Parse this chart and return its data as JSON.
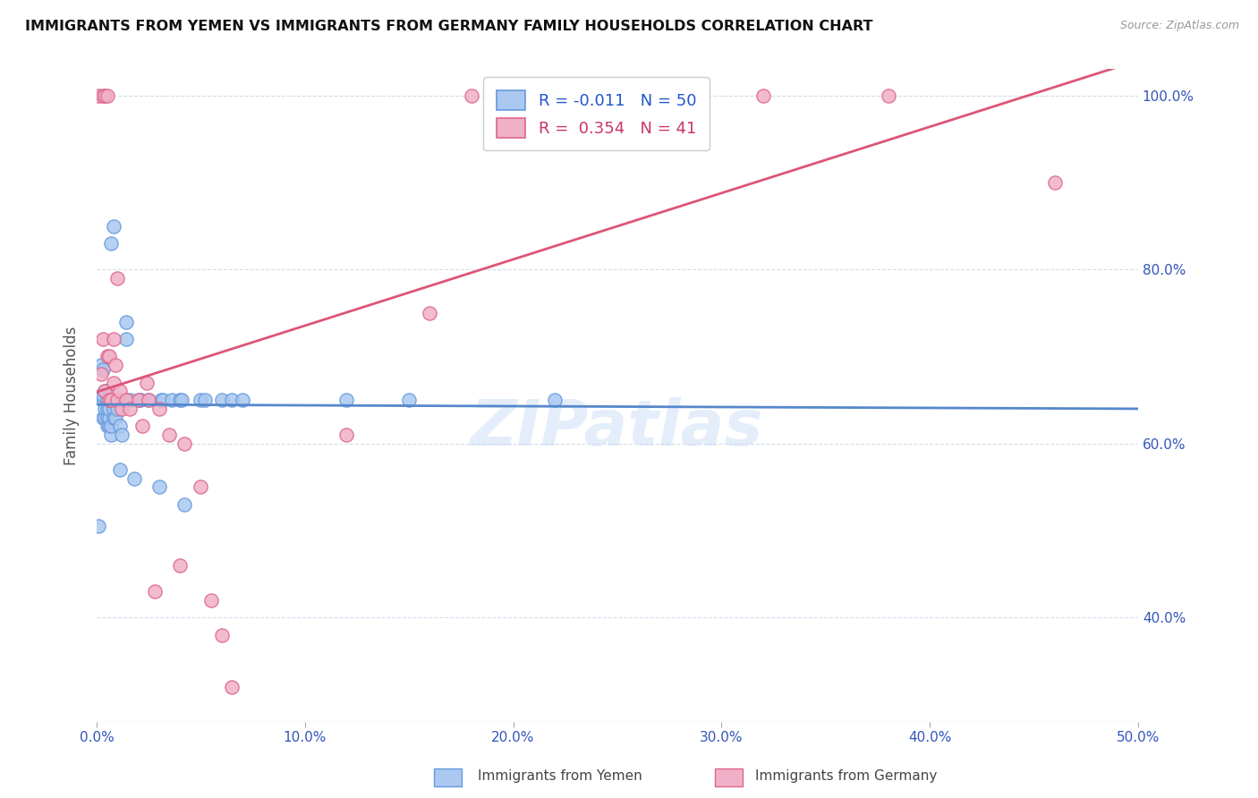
{
  "title": "IMMIGRANTS FROM YEMEN VS IMMIGRANTS FROM GERMANY FAMILY HOUSEHOLDS CORRELATION CHART",
  "source": "Source: ZipAtlas.com",
  "ylabel": "Family Households",
  "watermark": "ZIPatlas",
  "xlim": [
    0.0,
    0.5
  ],
  "ylim": [
    0.28,
    1.03
  ],
  "yemen_color": "#aac8f0",
  "germany_color": "#f0b0c8",
  "yemen_edge_color": "#6699dd",
  "germany_edge_color": "#dd6688",
  "yemen_line_color": "#5588cc",
  "germany_line_color": "#dd5577",
  "ytick_vals": [
    0.4,
    0.6,
    0.8,
    1.0
  ],
  "ytick_labels": [
    "40.0%",
    "60.0%",
    "80.0%",
    "100.0%"
  ],
  "xtick_vals": [
    0.0,
    0.1,
    0.2,
    0.3,
    0.4,
    0.5
  ],
  "xtick_labels": [
    "0.0%",
    "10.0%",
    "20.0%",
    "30.0%",
    "40.0%",
    "50.0%"
  ],
  "legend_blue_text": "R = -0.011   N = 50",
  "legend_pink_text": "R =  0.354   N = 41",
  "legend_blue_color": "#2255cc",
  "legend_pink_color": "#cc3366",
  "bottom_label1": "Immigrants from Yemen",
  "bottom_label2": "Immigrants from Germany",
  "yemen_x": [
    0.001,
    0.002,
    0.002,
    0.003,
    0.003,
    0.003,
    0.003,
    0.004,
    0.004,
    0.004,
    0.005,
    0.005,
    0.005,
    0.005,
    0.006,
    0.006,
    0.006,
    0.007,
    0.007,
    0.007,
    0.008,
    0.008,
    0.008,
    0.009,
    0.01,
    0.011,
    0.011,
    0.012,
    0.014,
    0.014,
    0.016,
    0.018,
    0.02,
    0.021,
    0.025,
    0.03,
    0.031,
    0.032,
    0.036,
    0.04,
    0.041,
    0.042,
    0.05,
    0.052,
    0.06,
    0.065,
    0.07,
    0.12,
    0.15,
    0.22
  ],
  "yemen_y": [
    0.505,
    0.655,
    0.69,
    0.63,
    0.65,
    0.655,
    0.685,
    0.63,
    0.64,
    0.66,
    0.62,
    0.63,
    0.64,
    0.65,
    0.62,
    0.63,
    0.64,
    0.61,
    0.62,
    0.83,
    0.63,
    0.64,
    0.85,
    0.63,
    0.64,
    0.57,
    0.62,
    0.61,
    0.72,
    0.74,
    0.65,
    0.56,
    0.65,
    0.65,
    0.65,
    0.55,
    0.65,
    0.65,
    0.65,
    0.65,
    0.65,
    0.53,
    0.65,
    0.65,
    0.65,
    0.65,
    0.65,
    0.65,
    0.65,
    0.65
  ],
  "germany_x": [
    0.001,
    0.002,
    0.003,
    0.003,
    0.004,
    0.004,
    0.005,
    0.005,
    0.006,
    0.006,
    0.007,
    0.008,
    0.008,
    0.009,
    0.01,
    0.01,
    0.011,
    0.012,
    0.014,
    0.016,
    0.02,
    0.022,
    0.024,
    0.025,
    0.028,
    0.03,
    0.035,
    0.04,
    0.042,
    0.05,
    0.055,
    0.06,
    0.065,
    0.12,
    0.16,
    0.18,
    0.22,
    0.28,
    0.32,
    0.38,
    0.46
  ],
  "germany_y": [
    1.0,
    0.68,
    0.72,
    1.0,
    0.66,
    1.0,
    0.7,
    1.0,
    0.65,
    0.7,
    0.65,
    0.67,
    0.72,
    0.69,
    0.79,
    0.65,
    0.66,
    0.64,
    0.65,
    0.64,
    0.65,
    0.62,
    0.67,
    0.65,
    0.43,
    0.64,
    0.61,
    0.46,
    0.6,
    0.55,
    0.42,
    0.38,
    0.32,
    0.61,
    0.75,
    1.0,
    1.0,
    1.0,
    1.0,
    1.0,
    0.9
  ]
}
